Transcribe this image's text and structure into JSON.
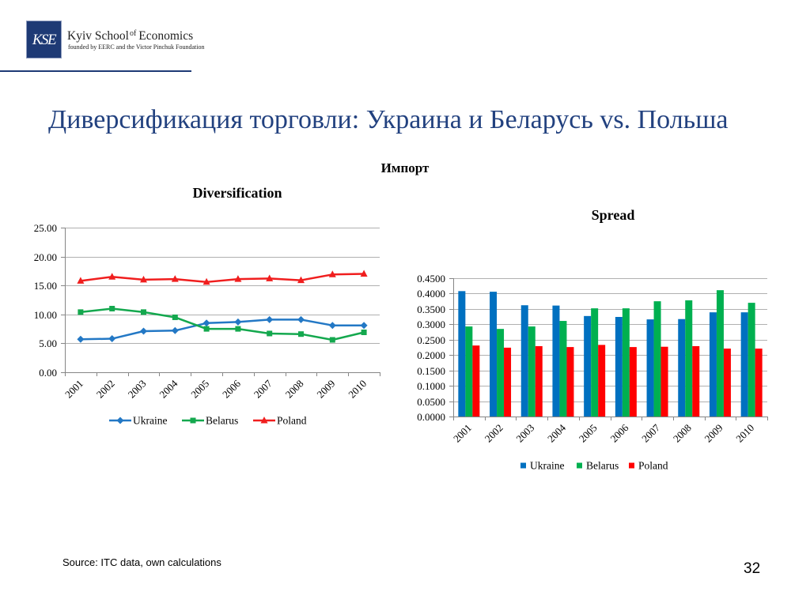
{
  "logo": {
    "mark": "KSE",
    "name_part1": "Kyiv School",
    "name_of": "of",
    "name_part2": "Economics",
    "tagline": "founded by EERC and the Victor Pinchuk Foundation"
  },
  "slide": {
    "title": "Диверсификация торговли: Украина и Беларусь vs. Польша",
    "section_label": "Импорт",
    "source": "Source: ITC data, own calculations",
    "page_number": "32"
  },
  "colors": {
    "title": "#22417F",
    "brand": "#1E3A75"
  },
  "chart_data": [
    {
      "type": "line",
      "title": "Diversification",
      "categories": [
        "2001",
        "2002",
        "2003",
        "2004",
        "2005",
        "2006",
        "2007",
        "2008",
        "2009",
        "2010"
      ],
      "series": [
        {
          "name": "Ukraine",
          "marker": "diamond",
          "color": "#2378C5",
          "values": [
            5.7,
            5.8,
            7.1,
            7.2,
            8.5,
            8.7,
            9.1,
            9.1,
            8.1,
            8.1
          ]
        },
        {
          "name": "Belarus",
          "marker": "square",
          "color": "#14A84E",
          "values": [
            10.4,
            11.0,
            10.4,
            9.5,
            7.5,
            7.5,
            6.7,
            6.6,
            5.6,
            6.9
          ]
        },
        {
          "name": "Poland",
          "marker": "triangle",
          "color": "#F01E1E",
          "values": [
            15.8,
            16.5,
            16.0,
            16.1,
            15.6,
            16.1,
            16.2,
            15.9,
            16.9,
            17.0
          ]
        }
      ],
      "ylim": [
        0,
        25
      ],
      "yticks": [
        0,
        5,
        10,
        15,
        20,
        25
      ],
      "ytick_labels": [
        "0.00",
        "5.00",
        "10.00",
        "15.00",
        "20.00",
        "25.00"
      ],
      "grid": true,
      "legend": "bottom"
    },
    {
      "type": "bar",
      "title": "Spread",
      "categories": [
        "2001",
        "2002",
        "2003",
        "2004",
        "2005",
        "2006",
        "2007",
        "2008",
        "2009",
        "2010"
      ],
      "series": [
        {
          "name": "Ukraine",
          "color": "#0070C0",
          "values": [
            0.408,
            0.406,
            0.362,
            0.361,
            0.327,
            0.324,
            0.316,
            0.317,
            0.339,
            0.339
          ]
        },
        {
          "name": "Belarus",
          "color": "#00B050",
          "values": [
            0.293,
            0.285,
            0.293,
            0.311,
            0.352,
            0.352,
            0.375,
            0.378,
            0.411,
            0.37
          ]
        },
        {
          "name": "Poland",
          "color": "#FF0000",
          "values": [
            0.231,
            0.224,
            0.229,
            0.226,
            0.233,
            0.226,
            0.227,
            0.229,
            0.221,
            0.221
          ]
        }
      ],
      "ylim": [
        0,
        0.45
      ],
      "yticks": [
        0,
        0.05,
        0.1,
        0.15,
        0.2,
        0.25,
        0.3,
        0.35,
        0.4,
        0.45
      ],
      "ytick_labels": [
        "0.0000",
        "0.0500",
        "0.1000",
        "0.1500",
        "0.2000",
        "0.2500",
        "0.3000",
        "0.3500",
        "0.4000",
        "0.4500"
      ],
      "grid": true,
      "legend": "bottom"
    }
  ]
}
